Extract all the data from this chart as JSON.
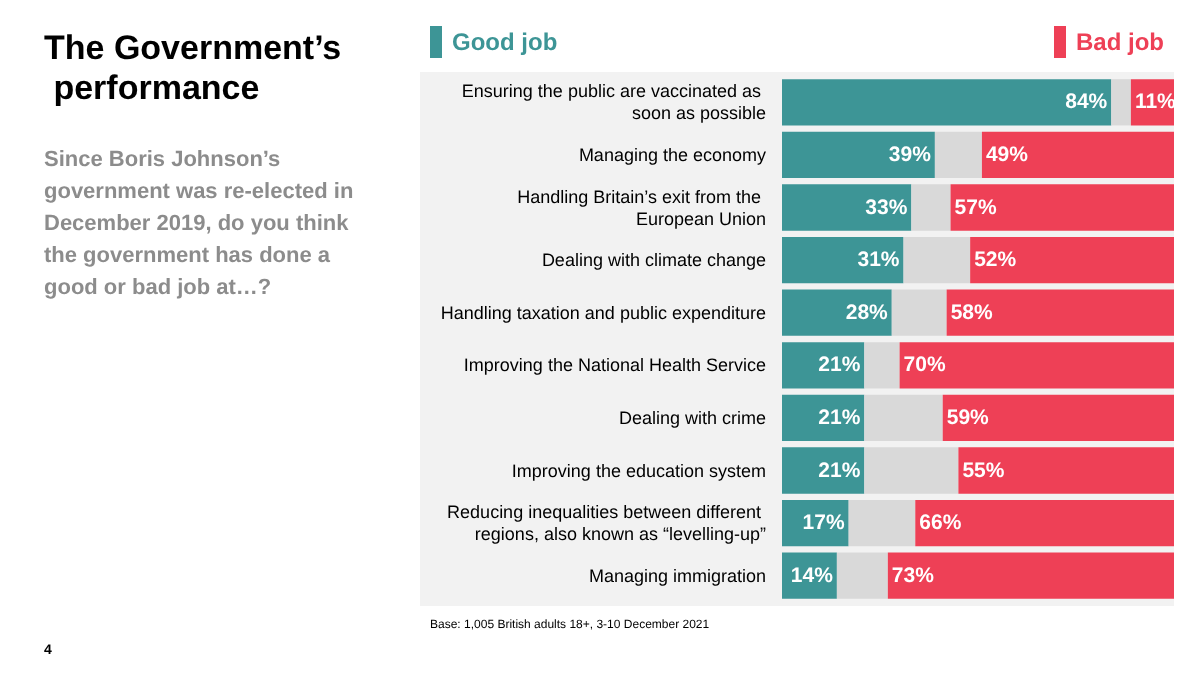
{
  "chart_data": {
    "type": "bar",
    "orientation": "horizontal",
    "stacked": true,
    "xlim": [
      0,
      100
    ],
    "legend": "top",
    "title": "The Government’s performance",
    "subtitle": "Since Boris Johnson’s government was re-elected in December 2019, do you think the government has done a good or bad job at…?",
    "categories": [
      "Ensuring the public are vaccinated as soon as possible",
      "Managing the economy",
      "Handling Britain’s exit from the European Union",
      "Dealing with climate change",
      "Handling taxation and public expenditure",
      "Improving the National Health Service",
      "Dealing with crime",
      "Improving the education system",
      "Reducing inequalities between different regions, also known as “levelling-up”",
      "Managing immigration"
    ],
    "series": [
      {
        "name": "Good job",
        "color": "#3d9596",
        "values": [
          84,
          39,
          33,
          31,
          28,
          21,
          21,
          21,
          17,
          14
        ],
        "value_labels": [
          "84%",
          "39%",
          "33%",
          "31%",
          "28%",
          "21%",
          "21%",
          "21%",
          "17%",
          "14%"
        ]
      },
      {
        "color": "#d9d9d9",
        "values": [
          5,
          12,
          10,
          17,
          14,
          9,
          20,
          24,
          17,
          13
        ]
      },
      {
        "name": "Bad job",
        "color": "#ee4056",
        "values": [
          11,
          49,
          57,
          52,
          58,
          70,
          59,
          55,
          66,
          73
        ],
        "value_labels": [
          "11%",
          "49%",
          "57%",
          "52%",
          "58%",
          "70%",
          "59%",
          "55%",
          "66%",
          "73%"
        ]
      }
    ],
    "annotations": [
      "Base: 1,005 British adults 18+, 3-10 December 2021",
      "4"
    ]
  }
}
